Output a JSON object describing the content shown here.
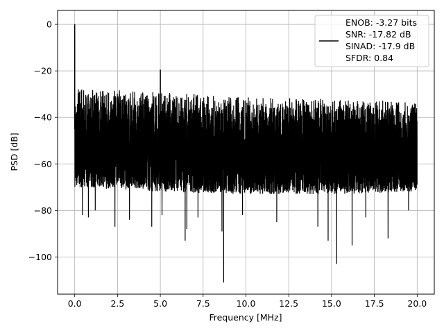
{
  "chart_data": {
    "type": "line",
    "xlabel": "Frequency [MHz]",
    "ylabel": "PSD [dB]",
    "xlim": [
      -1.0,
      21.0
    ],
    "ylim": [
      -116,
      6
    ],
    "xticks": [
      0.0,
      2.5,
      5.0,
      7.5,
      10.0,
      12.5,
      15.0,
      17.5,
      20.0
    ],
    "xtick_labels": [
      "0.0",
      "2.5",
      "5.0",
      "7.5",
      "10.0",
      "12.5",
      "15.0",
      "17.5",
      "20.0"
    ],
    "yticks": [
      0,
      -20,
      -40,
      -60,
      -80,
      -100
    ],
    "ytick_labels": [
      "0",
      "−20",
      "−40",
      "−60",
      "−80",
      "−100"
    ],
    "grid": true,
    "legend_position": "top-right",
    "series": [
      {
        "color": "#000000",
        "legend_lines": [
          "ENOB: -3.27 bits",
          "SNR: -17.82 dB",
          "SINAD: -17.9 dB",
          "SFDR: 0.84"
        ],
        "noise_band": {
          "x_range": [
            0.0,
            20.0
          ],
          "upper_envelope": [
            [
              0.1,
              -27
            ],
            [
              2.0,
              -28
            ],
            [
              5.0,
              -29
            ],
            [
              10.0,
              -31
            ],
            [
              15.0,
              -32
            ],
            [
              20.0,
              -33
            ]
          ],
          "lower_envelope": [
            [
              0.1,
              -70
            ],
            [
              5.0,
              -72
            ],
            [
              10.0,
              -73
            ],
            [
              15.0,
              -73
            ],
            [
              20.0,
              -72
            ]
          ]
        },
        "peaks": [
          {
            "x": 0.0,
            "y": 0
          },
          {
            "x": 5.0,
            "y": -19.5
          }
        ],
        "dips": [
          {
            "x": 0.45,
            "y": -82
          },
          {
            "x": 0.8,
            "y": -83
          },
          {
            "x": 1.2,
            "y": -80
          },
          {
            "x": 2.35,
            "y": -87
          },
          {
            "x": 3.2,
            "y": -84
          },
          {
            "x": 4.5,
            "y": -87
          },
          {
            "x": 5.1,
            "y": -82
          },
          {
            "x": 6.45,
            "y": -93
          },
          {
            "x": 6.55,
            "y": -88
          },
          {
            "x": 7.2,
            "y": -83
          },
          {
            "x": 8.6,
            "y": -89
          },
          {
            "x": 8.7,
            "y": -111
          },
          {
            "x": 9.8,
            "y": -82
          },
          {
            "x": 11.8,
            "y": -85
          },
          {
            "x": 14.2,
            "y": -87
          },
          {
            "x": 14.8,
            "y": -93
          },
          {
            "x": 15.3,
            "y": -103
          },
          {
            "x": 16.2,
            "y": -95
          },
          {
            "x": 17.0,
            "y": -83
          },
          {
            "x": 18.3,
            "y": -92
          },
          {
            "x": 19.5,
            "y": -80
          }
        ]
      }
    ]
  }
}
